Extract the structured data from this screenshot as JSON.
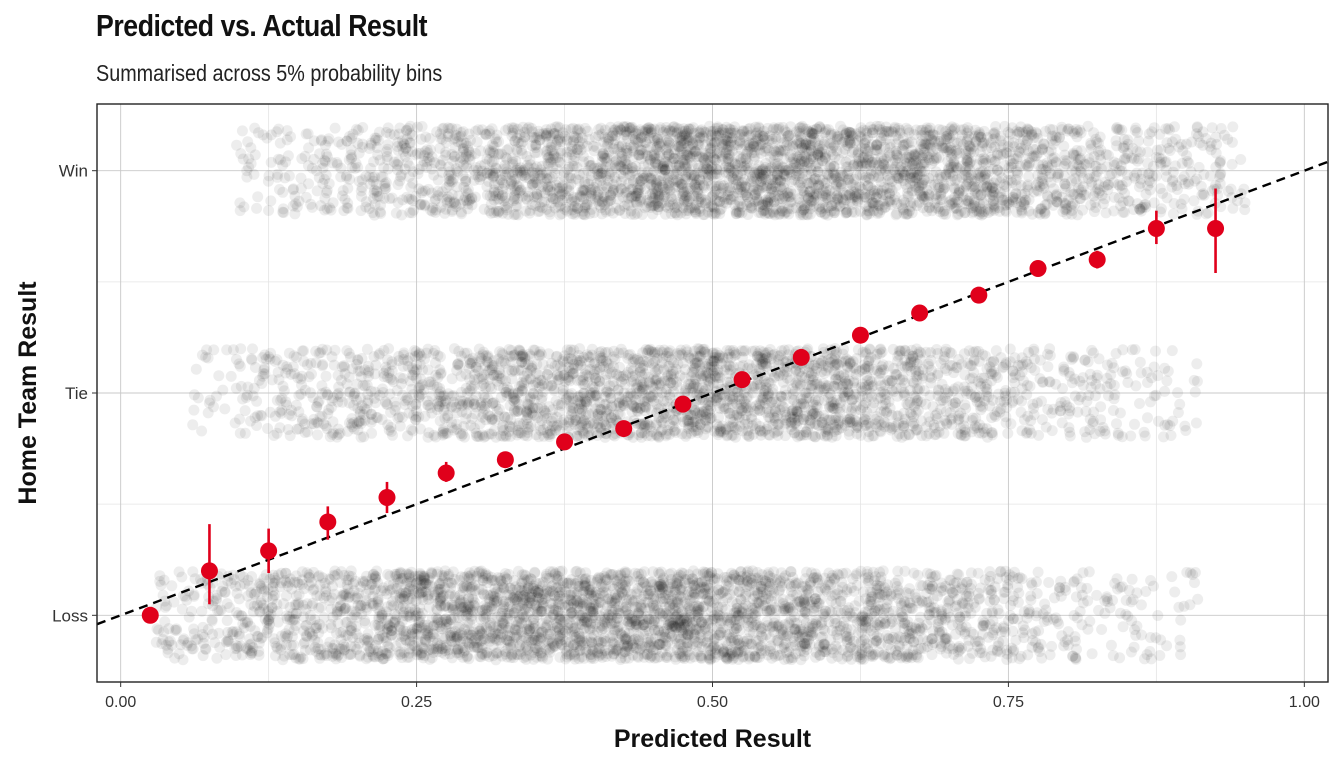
{
  "title": "Predicted vs. Actual Result",
  "subtitle": "Summarised across 5% probability bins",
  "colors": {
    "points": "#000000",
    "summary": "#e0001b",
    "reference_line": "#000000",
    "grid_major": "#c8c8c8",
    "grid_minor": "#e4e4e4",
    "panel_border": "#222222"
  },
  "chart_data": {
    "type": "scatter",
    "title": "Predicted vs. Actual Result",
    "subtitle": "Summarised across 5% probability bins",
    "xlabel": "Predicted Result",
    "ylabel": "Home Team Result",
    "xlim": [
      -0.02,
      1.02
    ],
    "ylim": [
      -0.15,
      1.15
    ],
    "x_ticks": [
      0.0,
      0.25,
      0.5,
      0.75,
      1.0
    ],
    "x_tick_labels": [
      "0.00",
      "0.25",
      "0.50",
      "0.75",
      "1.00"
    ],
    "y_ticks": [
      0.0,
      0.5,
      1.0
    ],
    "y_tick_labels": [
      "Loss",
      "Tie",
      "Win"
    ],
    "grid": true,
    "reference_line": {
      "style": "dashed",
      "slope": 1,
      "intercept": 0
    },
    "raw_observations": {
      "description": "Jittered individual matches (low-alpha points) at Loss, Tie and Win",
      "bands": [
        {
          "result": "Loss",
          "y": 0.0,
          "x_range": [
            0.03,
            0.91
          ],
          "peak": 0.42
        },
        {
          "result": "Tie",
          "y": 0.5,
          "x_range": [
            0.06,
            0.91
          ],
          "peak": 0.48
        },
        {
          "result": "Win",
          "y": 1.0,
          "x_range": [
            0.09,
            0.95
          ],
          "peak": 0.55
        }
      ]
    },
    "series": [
      {
        "bins": [
          0.025,
          0.075,
          0.125,
          0.175,
          0.225,
          0.275,
          0.325,
          0.375,
          0.425,
          0.475,
          0.525,
          0.575,
          0.625,
          0.675,
          0.725,
          0.775,
          0.825,
          0.875,
          0.925
        ],
        "values": [
          0.0,
          0.1,
          0.145,
          0.21,
          0.265,
          0.32,
          0.35,
          0.39,
          0.42,
          0.475,
          0.53,
          0.58,
          0.63,
          0.68,
          0.72,
          0.78,
          0.8,
          0.87,
          0.87
        ],
        "lower": [
          0.0,
          0.025,
          0.095,
          0.17,
          0.23,
          0.3,
          0.34,
          0.38,
          0.41,
          0.465,
          0.52,
          0.57,
          0.62,
          0.67,
          0.71,
          0.765,
          0.78,
          0.835,
          0.77
        ],
        "upper": [
          0.0,
          0.205,
          0.195,
          0.245,
          0.3,
          0.345,
          0.36,
          0.4,
          0.43,
          0.485,
          0.54,
          0.59,
          0.64,
          0.69,
          0.73,
          0.795,
          0.82,
          0.91,
          0.96
        ]
      }
    ]
  }
}
